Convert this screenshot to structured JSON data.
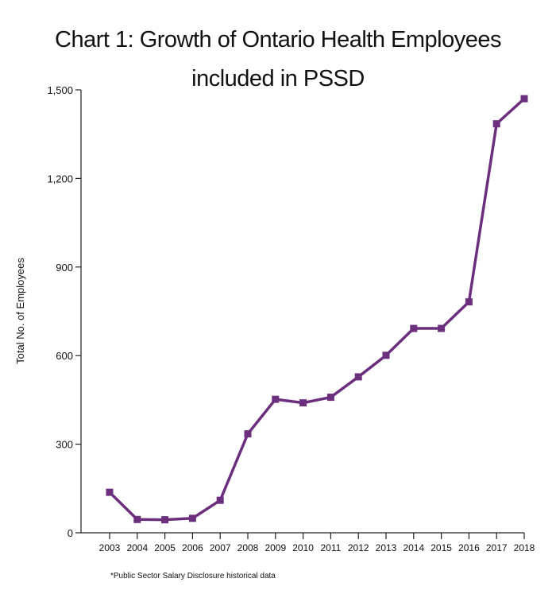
{
  "chart_data": {
    "type": "line",
    "title": "Chart 1:  Growth of Ontario Health Employees",
    "subtitle": "included in PSSD",
    "ylabel": "Total No. of Employees",
    "xlabel": "",
    "ylim": [
      0,
      1500
    ],
    "yticks": [
      0,
      300,
      600,
      900,
      1200,
      1500
    ],
    "ytick_labels": [
      "0",
      "300",
      "600",
      "900",
      "1,200",
      "1,500"
    ],
    "x": [
      "2003",
      "2004",
      "2005",
      "2006",
      "2007",
      "2008",
      "2009",
      "2010",
      "2011",
      "2012",
      "2013",
      "2014",
      "2015",
      "2016",
      "2017",
      "2018"
    ],
    "series": [
      {
        "values": [
          137,
          45,
          44,
          49,
          110,
          335,
          452,
          440,
          459,
          528,
          601,
          692,
          692,
          782,
          1385,
          1470
        ],
        "color": "#6b2f7e",
        "marker": "square"
      }
    ],
    "grid": false,
    "legend": "none"
  },
  "footnote": "*Public Sector Salary Disclosure historical data"
}
